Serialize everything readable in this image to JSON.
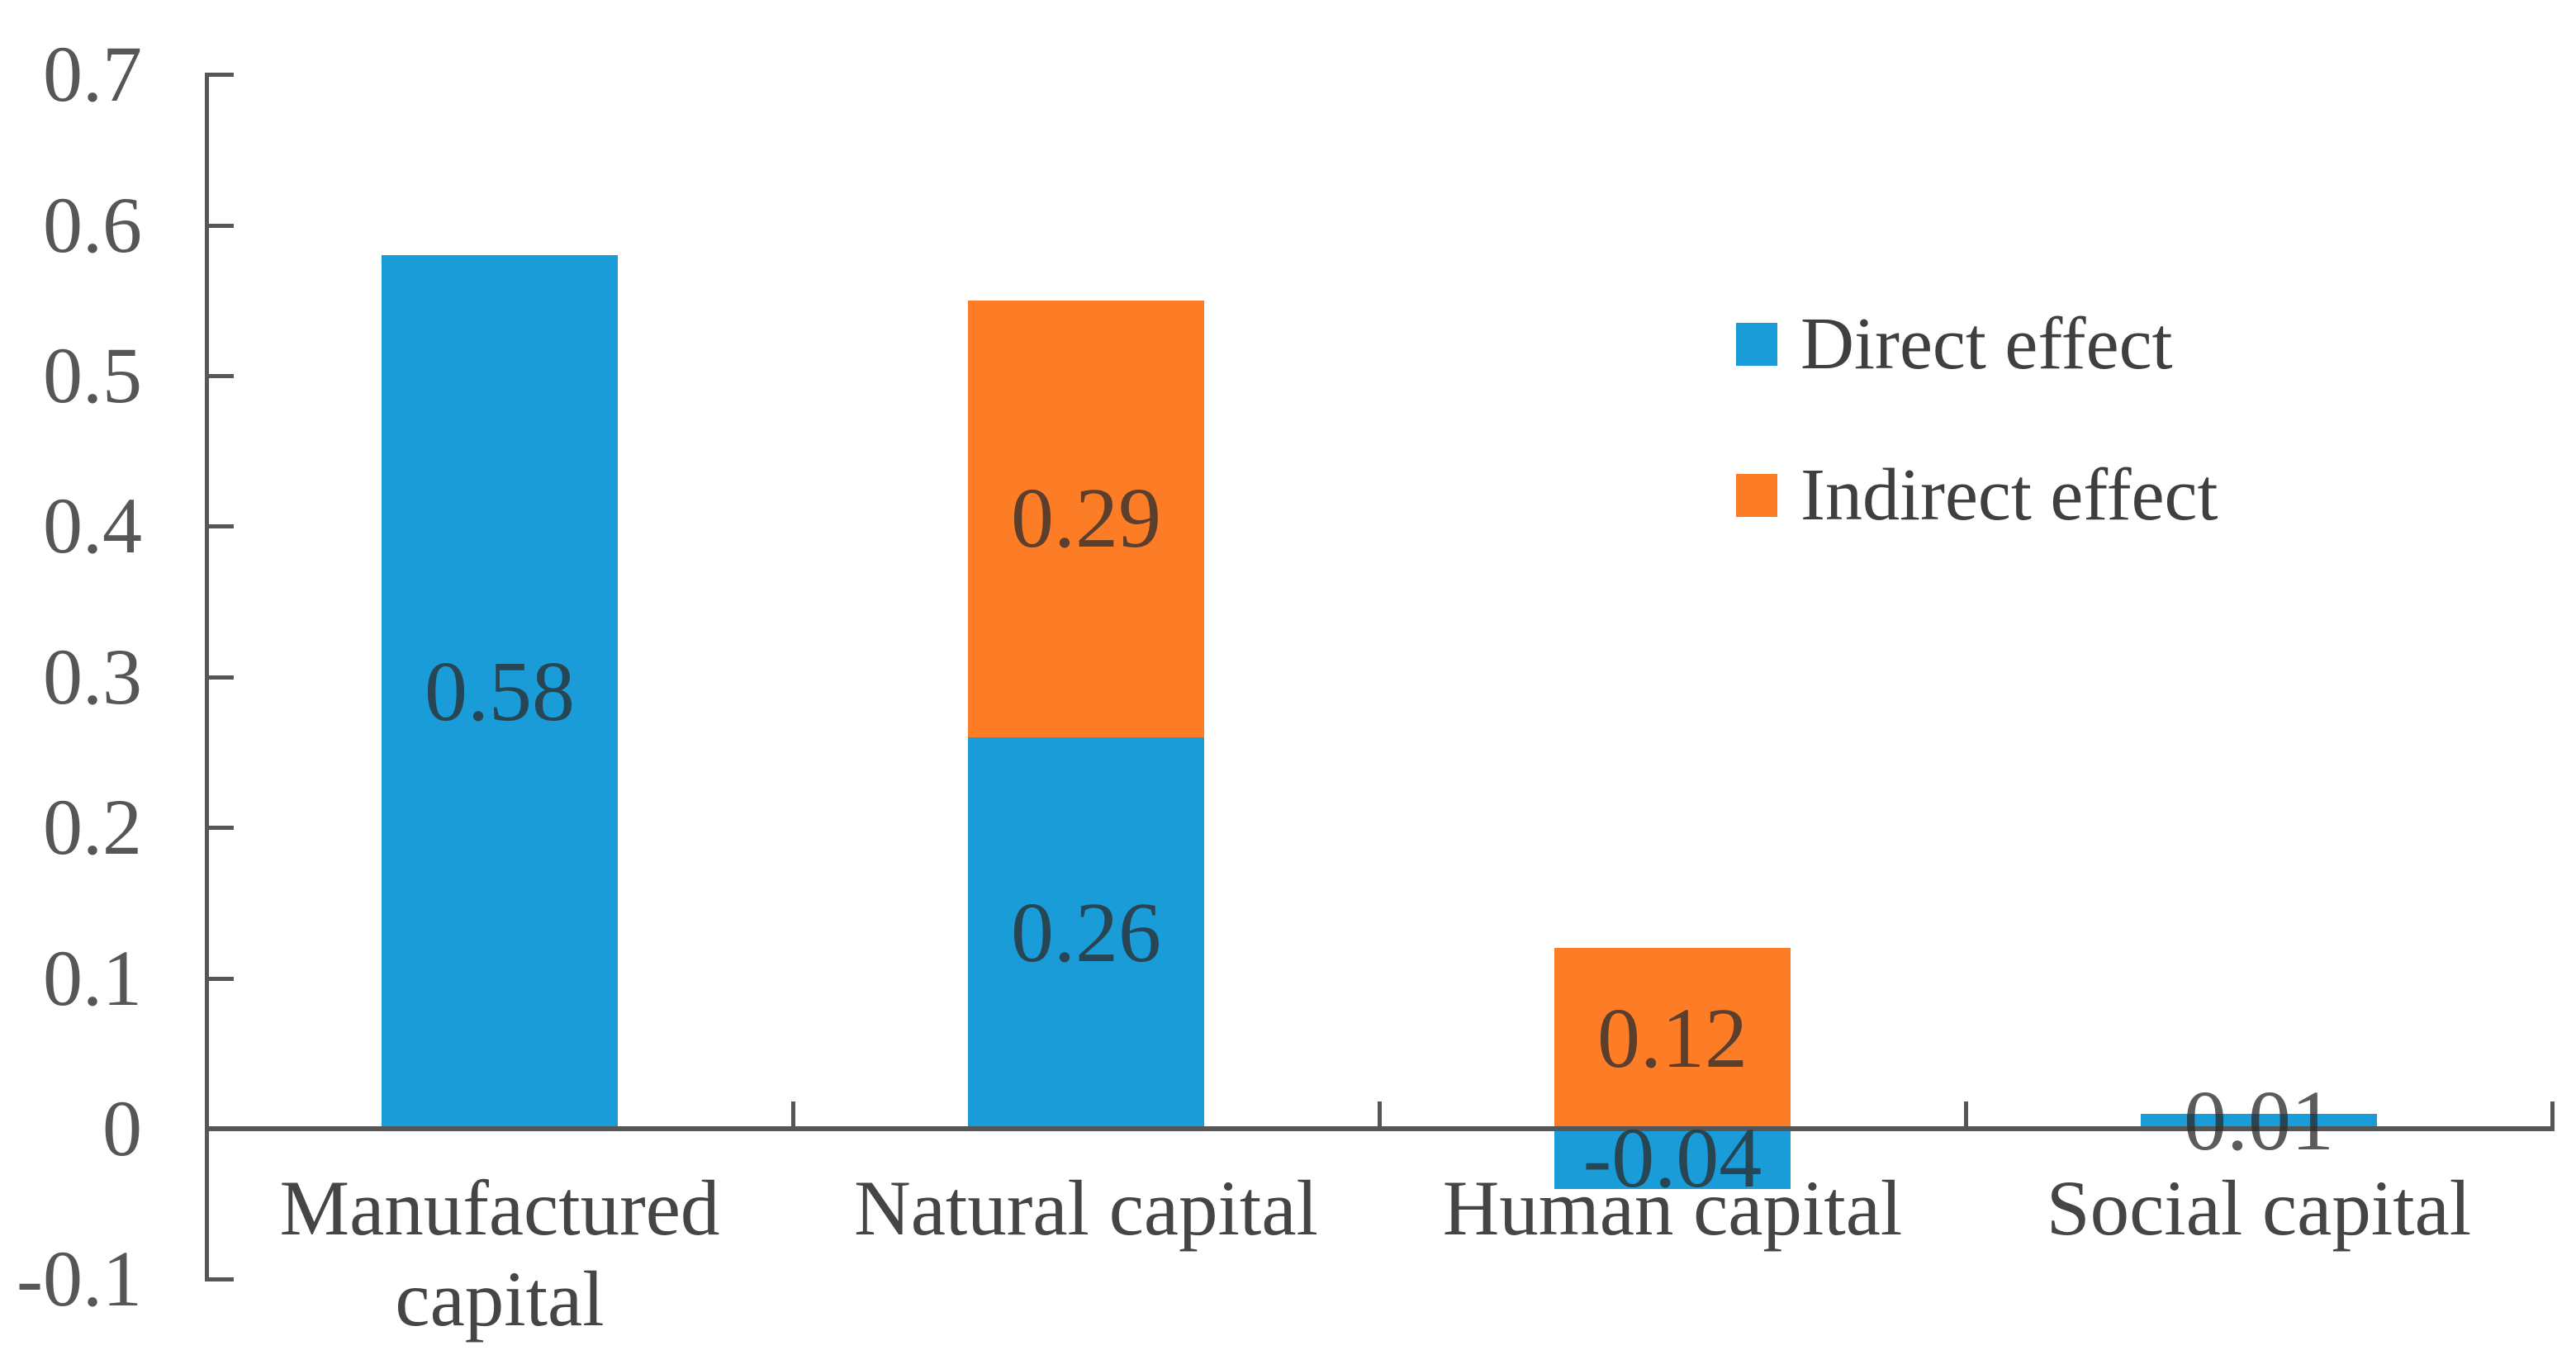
{
  "figure": {
    "background": "#ffffff"
  },
  "chart_data": {
    "type": "bar",
    "stacked": true,
    "title": "",
    "xlabel": "",
    "ylabel": "",
    "grid": false,
    "categories": [
      "Manufactured\ncapital",
      "Natural capital",
      "Human capital",
      "Social capital"
    ],
    "series": [
      {
        "name": "Direct effect",
        "color": "#199cd8",
        "values": [
          0.58,
          0.26,
          -0.04,
          0.01
        ],
        "value_labels": [
          "0.58",
          "0.26",
          "-0.04",
          "0.01"
        ]
      },
      {
        "name": "Indirect effect",
        "color": "#fd7c26",
        "values": [
          0,
          0.29,
          0.12,
          0
        ],
        "value_labels": [
          "",
          "0.29",
          "0.12",
          ""
        ]
      }
    ],
    "totals_visible": [
      0.58,
      0.55,
      0.12,
      0.01
    ],
    "ylim": [
      -0.1,
      0.7
    ],
    "ytick_values": [
      0.7,
      0.6,
      0.5,
      0.4,
      0.3,
      0.2,
      0.1,
      0,
      -0.1
    ],
    "ytick_labels": [
      "0.7",
      "0.6",
      "0.5",
      "0.4",
      "0.3",
      "0.2",
      "0.1",
      "0",
      "-0.1"
    ],
    "legend_position": "upper right",
    "legend": [
      {
        "label": "Direct effect",
        "color": "#199cd8"
      },
      {
        "label": "Indirect effect",
        "color": "#fd7c26"
      }
    ],
    "colors": {
      "direct": "#199cd8",
      "indirect": "#fd7c26",
      "axis": "#565656",
      "tick_text": "#565656",
      "category_text": "#454545",
      "value_text": "#2d2d2d",
      "legend_text": "#3f3f3f",
      "background": "#ffffff"
    }
  }
}
